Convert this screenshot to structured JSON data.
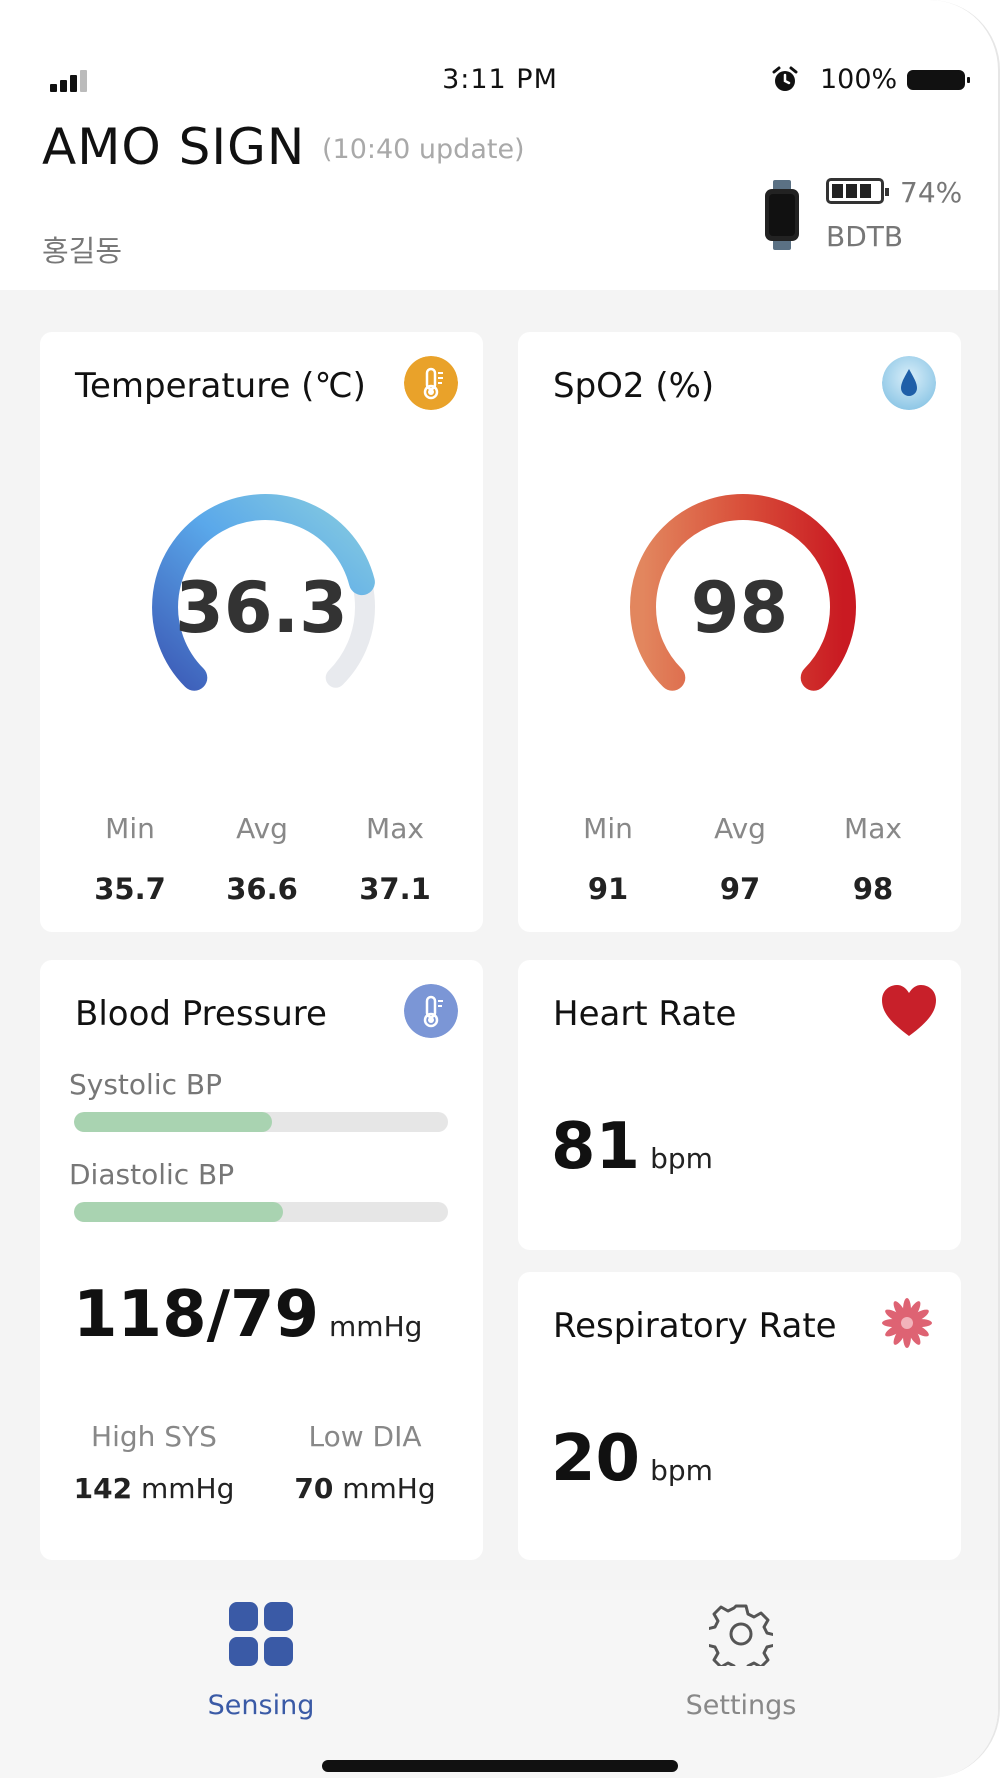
{
  "status_bar": {
    "time": "3:11 PM",
    "battery_percent": "100%"
  },
  "header": {
    "title": "AMO SIGN",
    "update": "(10:40 update)",
    "user_name": "홍길동",
    "device": {
      "battery_percent": "74%",
      "name": "BDTB",
      "battery_bars": 3
    }
  },
  "temperature": {
    "title": "Temperature (℃)",
    "value": "36.3",
    "gauge_fraction": 0.78,
    "icon_color": "#e9a22a",
    "stats": [
      {
        "label": "Min",
        "value": "35.7"
      },
      {
        "label": "Avg",
        "value": "36.6"
      },
      {
        "label": "Max",
        "value": "37.1"
      }
    ]
  },
  "spo2": {
    "title": "SpO2 (%)",
    "value": "98",
    "gauge_fraction": 1.0,
    "stats": [
      {
        "label": "Min",
        "value": "91"
      },
      {
        "label": "Avg",
        "value": "97"
      },
      {
        "label": "Max",
        "value": "98"
      }
    ]
  },
  "blood_pressure": {
    "title": "Blood Pressure",
    "systolic_label": "Systolic BP",
    "systolic_fraction": 0.53,
    "diastolic_label": "Diastolic BP",
    "diastolic_fraction": 0.56,
    "value": "118/79",
    "unit": "mmHg",
    "high_sys_label": "High SYS",
    "high_sys_value": "142",
    "low_dia_label": "Low DIA",
    "low_dia_value": "70",
    "sub_unit": "mmHg",
    "icon_color": "#7b96d6"
  },
  "heart_rate": {
    "title": "Heart Rate",
    "value": "81",
    "unit": "bpm",
    "icon_color": "#c8202a"
  },
  "respiratory_rate": {
    "title": "Respiratory Rate",
    "value": "20",
    "unit": "bpm",
    "icon_color": "#d9485b"
  },
  "nav": {
    "items": [
      {
        "label": "Sensing",
        "active": true
      },
      {
        "label": "Settings",
        "active": false
      }
    ],
    "active_color": "#3a5aa6"
  }
}
